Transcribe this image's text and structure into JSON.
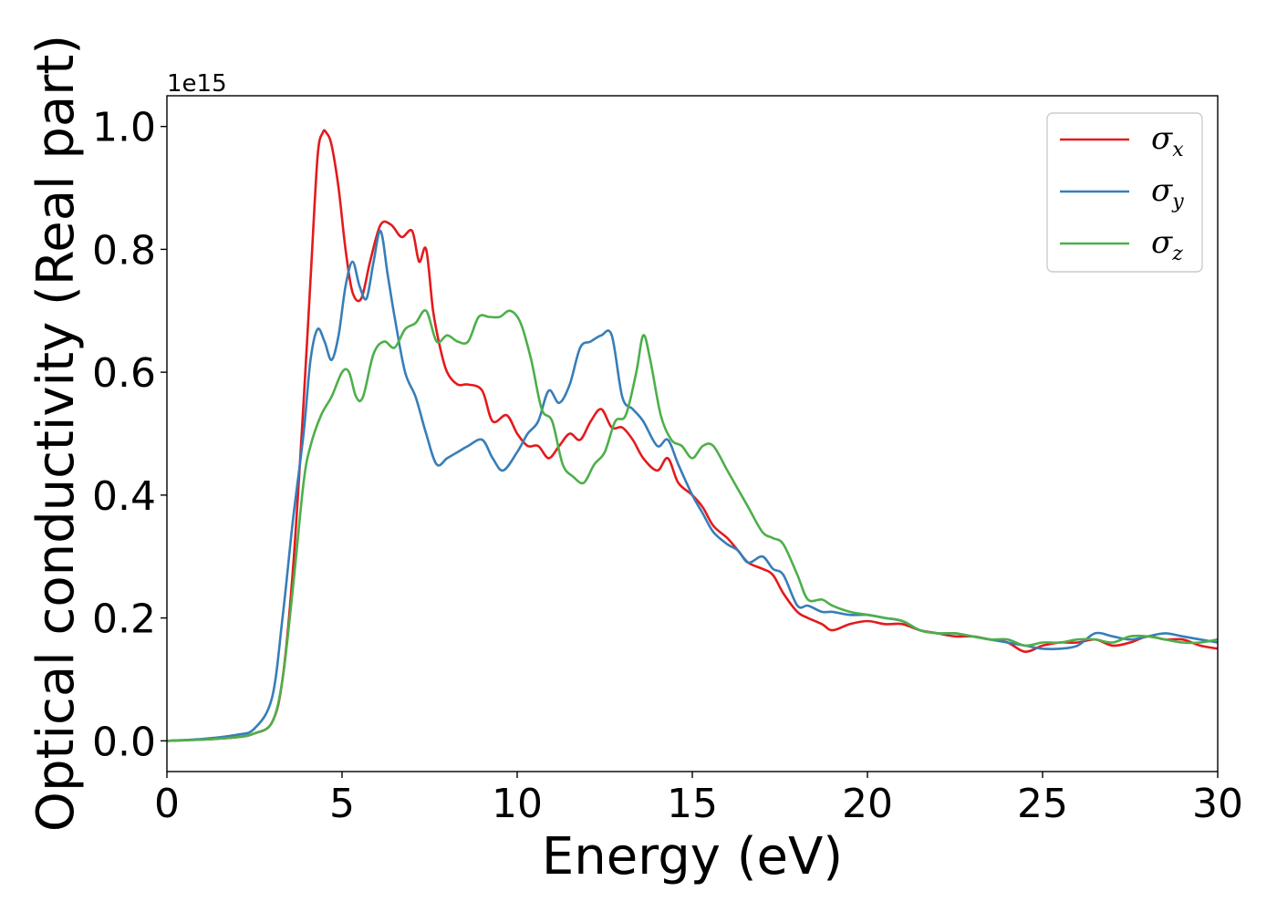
{
  "chart_data": {
    "type": "line",
    "xlabel": "Energy (eV)",
    "ylabel": "Optical conductivity (Real part)",
    "y_offset_label": "1e15",
    "xlim": [
      0,
      30
    ],
    "ylim": [
      -0.05,
      1.05
    ],
    "xticks": [
      0,
      5,
      10,
      15,
      20,
      25,
      30
    ],
    "xtick_labels": [
      "0",
      "5",
      "10",
      "15",
      "20",
      "25",
      "30"
    ],
    "yticks": [
      0.0,
      0.2,
      0.4,
      0.6,
      0.8,
      1.0
    ],
    "ytick_labels": [
      "0.0",
      "0.2",
      "0.4",
      "0.6",
      "0.8",
      "1.0"
    ],
    "grid": false,
    "legend_position": "top-right",
    "series": [
      {
        "name": "σx",
        "legend_symbol": "σ",
        "legend_subscript": "x",
        "color": "#e41a1c",
        "x": [
          0,
          1,
          2,
          2.5,
          3,
          3.3,
          3.6,
          3.9,
          4.1,
          4.3,
          4.45,
          4.55,
          4.7,
          4.9,
          5.1,
          5.3,
          5.55,
          5.8,
          6.1,
          6.4,
          6.7,
          7.0,
          7.2,
          7.4,
          7.6,
          7.8,
          8.0,
          8.3,
          8.6,
          9.0,
          9.3,
          9.7,
          10.0,
          10.3,
          10.6,
          10.9,
          11.2,
          11.5,
          11.8,
          12.1,
          12.4,
          12.7,
          13.0,
          13.3,
          13.6,
          14.0,
          14.3,
          14.6,
          15.0,
          15.3,
          15.6,
          16.0,
          16.3,
          16.6,
          17.0,
          17.3,
          17.6,
          18.0,
          18.3,
          18.7,
          19.0,
          19.5,
          20.0,
          20.5,
          21.0,
          21.5,
          22.0,
          22.5,
          23.0,
          23.5,
          24.0,
          24.5,
          25.0,
          25.5,
          26.0,
          26.5,
          27.0,
          27.5,
          28.0,
          28.5,
          29.0,
          29.5,
          30.0
        ],
        "y": [
          0.0,
          0.002,
          0.006,
          0.012,
          0.03,
          0.1,
          0.28,
          0.55,
          0.75,
          0.95,
          0.99,
          0.99,
          0.97,
          0.9,
          0.8,
          0.73,
          0.72,
          0.78,
          0.84,
          0.84,
          0.82,
          0.83,
          0.78,
          0.8,
          0.7,
          0.64,
          0.6,
          0.58,
          0.58,
          0.57,
          0.52,
          0.53,
          0.5,
          0.48,
          0.48,
          0.46,
          0.48,
          0.5,
          0.49,
          0.52,
          0.54,
          0.51,
          0.51,
          0.49,
          0.46,
          0.44,
          0.46,
          0.42,
          0.4,
          0.38,
          0.35,
          0.33,
          0.31,
          0.29,
          0.28,
          0.27,
          0.24,
          0.21,
          0.2,
          0.19,
          0.18,
          0.19,
          0.195,
          0.19,
          0.19,
          0.18,
          0.175,
          0.17,
          0.17,
          0.165,
          0.16,
          0.145,
          0.155,
          0.16,
          0.16,
          0.165,
          0.155,
          0.16,
          0.17,
          0.165,
          0.165,
          0.155,
          0.15
        ]
      },
      {
        "name": "σy",
        "legend_symbol": "σ",
        "legend_subscript": "y",
        "color": "#377eb8",
        "x": [
          0,
          1,
          2,
          2.5,
          3,
          3.3,
          3.6,
          3.9,
          4.1,
          4.3,
          4.5,
          4.7,
          4.9,
          5.1,
          5.3,
          5.5,
          5.7,
          5.9,
          6.1,
          6.3,
          6.5,
          6.8,
          7.1,
          7.4,
          7.7,
          8.0,
          8.3,
          8.6,
          9.0,
          9.3,
          9.6,
          10.0,
          10.3,
          10.6,
          10.9,
          11.2,
          11.5,
          11.8,
          12.1,
          12.4,
          12.7,
          13.0,
          13.3,
          13.6,
          14.0,
          14.3,
          14.6,
          15.0,
          15.3,
          15.6,
          16.0,
          16.3,
          16.6,
          17.0,
          17.3,
          17.6,
          18.0,
          18.3,
          18.7,
          19.0,
          19.5,
          20.0,
          20.5,
          21.0,
          21.5,
          22.0,
          22.5,
          23.0,
          23.5,
          24.0,
          24.5,
          25.0,
          25.5,
          26.0,
          26.5,
          27.0,
          27.5,
          28.0,
          28.5,
          29.0,
          29.5,
          30.0
        ],
        "y": [
          0.0,
          0.003,
          0.01,
          0.02,
          0.07,
          0.2,
          0.36,
          0.5,
          0.62,
          0.67,
          0.65,
          0.62,
          0.66,
          0.74,
          0.78,
          0.74,
          0.72,
          0.78,
          0.83,
          0.76,
          0.69,
          0.6,
          0.56,
          0.5,
          0.45,
          0.46,
          0.47,
          0.48,
          0.49,
          0.46,
          0.44,
          0.47,
          0.5,
          0.52,
          0.57,
          0.55,
          0.58,
          0.64,
          0.65,
          0.66,
          0.66,
          0.56,
          0.54,
          0.52,
          0.48,
          0.49,
          0.45,
          0.4,
          0.37,
          0.34,
          0.32,
          0.31,
          0.29,
          0.3,
          0.28,
          0.27,
          0.22,
          0.22,
          0.21,
          0.21,
          0.205,
          0.205,
          0.2,
          0.195,
          0.18,
          0.175,
          0.175,
          0.17,
          0.165,
          0.16,
          0.155,
          0.15,
          0.15,
          0.155,
          0.175,
          0.17,
          0.165,
          0.17,
          0.175,
          0.17,
          0.165,
          0.16
        ]
      },
      {
        "name": "σz",
        "legend_symbol": "σ",
        "legend_subscript": "z",
        "color": "#4daf4a",
        "x": [
          0,
          1,
          2,
          2.5,
          3,
          3.3,
          3.6,
          3.9,
          4.1,
          4.4,
          4.7,
          5.0,
          5.2,
          5.4,
          5.6,
          5.9,
          6.2,
          6.5,
          6.8,
          7.1,
          7.4,
          7.7,
          8.0,
          8.3,
          8.6,
          8.9,
          9.2,
          9.5,
          9.8,
          10.1,
          10.4,
          10.7,
          11.0,
          11.3,
          11.6,
          11.9,
          12.2,
          12.5,
          12.8,
          13.1,
          13.4,
          13.6,
          13.8,
          14.1,
          14.4,
          14.7,
          15.0,
          15.3,
          15.6,
          16.0,
          16.3,
          16.6,
          17.0,
          17.3,
          17.6,
          18.0,
          18.3,
          18.7,
          19.0,
          19.5,
          20.0,
          20.5,
          21.0,
          21.5,
          22.0,
          22.5,
          23.0,
          23.5,
          24.0,
          24.5,
          25.0,
          25.5,
          26.0,
          26.5,
          27.0,
          27.5,
          28.0,
          28.5,
          29.0,
          29.5,
          30.0
        ],
        "y": [
          0.0,
          0.002,
          0.006,
          0.012,
          0.03,
          0.1,
          0.25,
          0.42,
          0.48,
          0.53,
          0.56,
          0.6,
          0.6,
          0.56,
          0.56,
          0.63,
          0.65,
          0.64,
          0.67,
          0.68,
          0.7,
          0.65,
          0.66,
          0.65,
          0.65,
          0.69,
          0.69,
          0.69,
          0.7,
          0.68,
          0.62,
          0.54,
          0.52,
          0.45,
          0.43,
          0.42,
          0.45,
          0.47,
          0.52,
          0.53,
          0.6,
          0.66,
          0.62,
          0.53,
          0.49,
          0.48,
          0.46,
          0.48,
          0.48,
          0.44,
          0.41,
          0.38,
          0.34,
          0.33,
          0.32,
          0.27,
          0.23,
          0.23,
          0.22,
          0.21,
          0.205,
          0.2,
          0.195,
          0.18,
          0.175,
          0.175,
          0.17,
          0.165,
          0.165,
          0.155,
          0.16,
          0.16,
          0.165,
          0.165,
          0.16,
          0.17,
          0.17,
          0.165,
          0.16,
          0.16,
          0.165
        ]
      }
    ]
  }
}
